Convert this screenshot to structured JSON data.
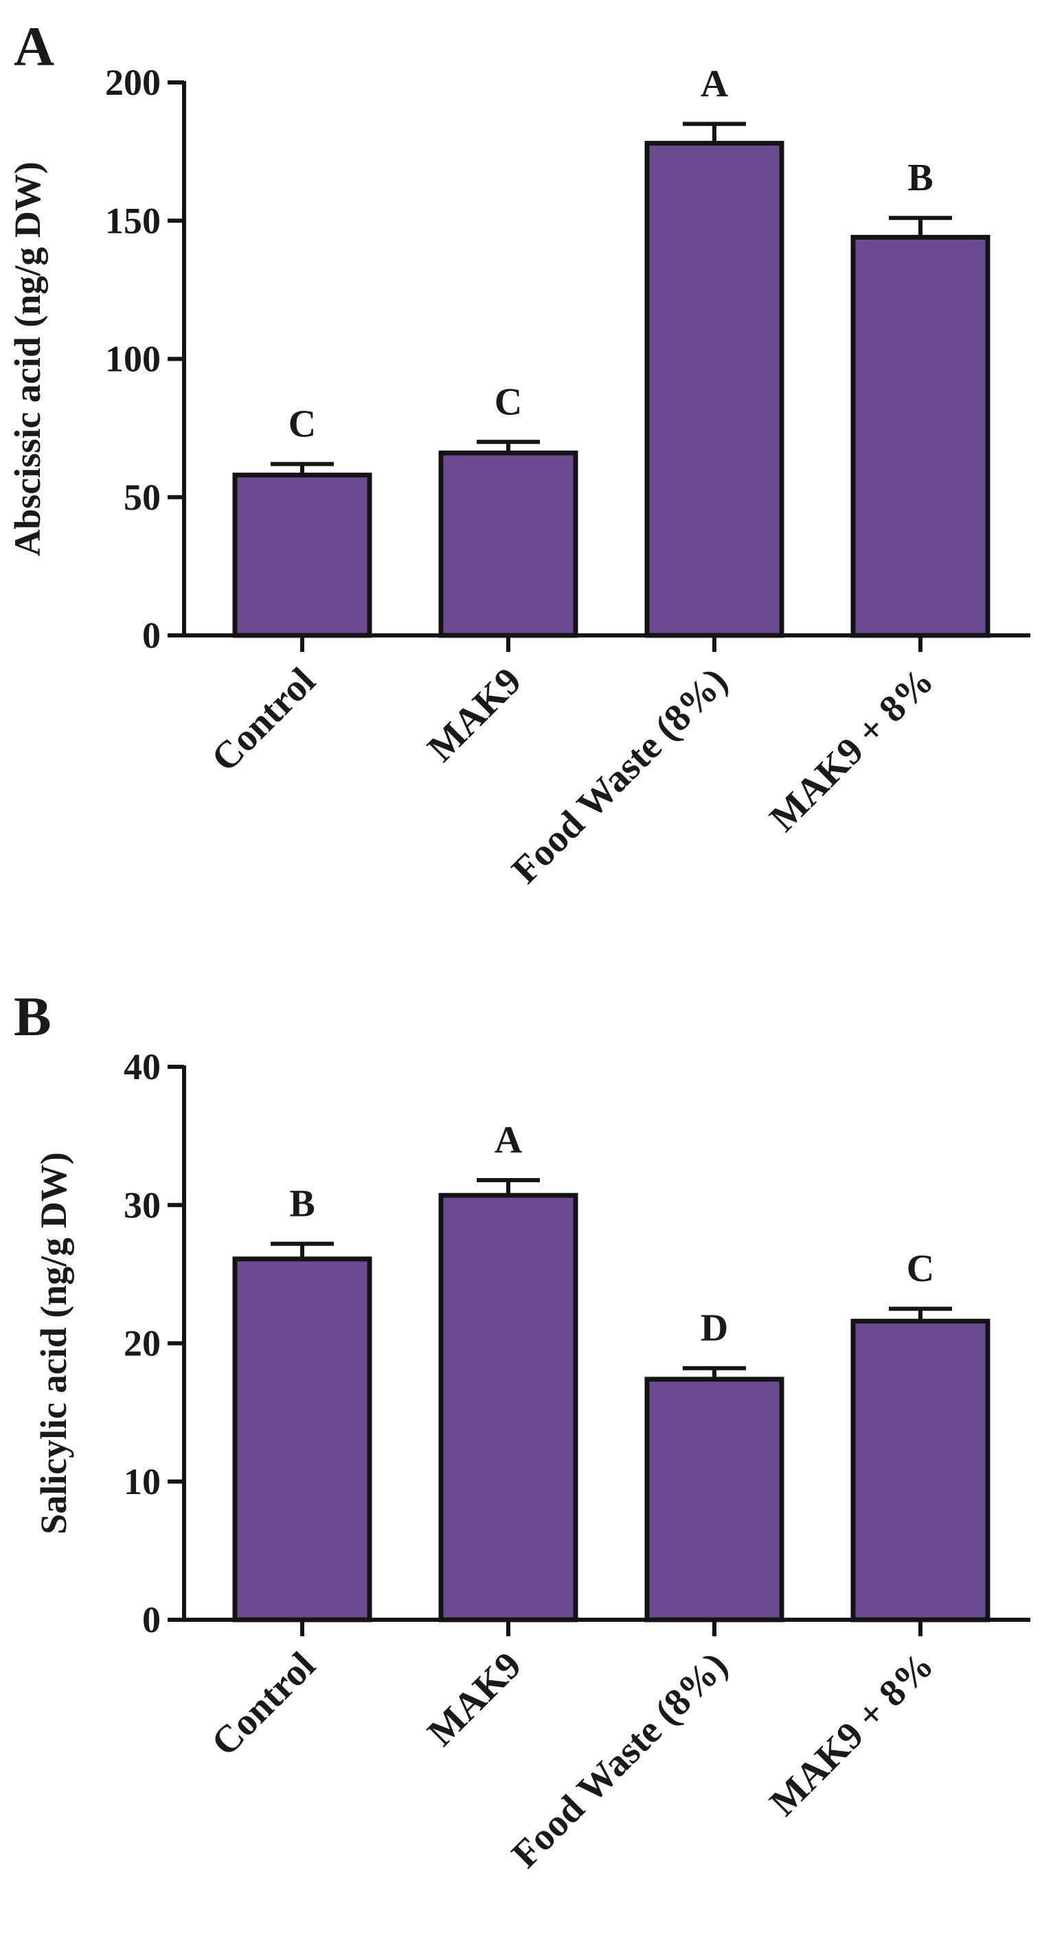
{
  "colors": {
    "bar": "#6b4c93",
    "stroke": "#141414",
    "text": "#1a1a1a"
  },
  "chart_data": [
    {
      "panel_label": "A",
      "type": "bar",
      "title": "",
      "xlabel": "",
      "ylabel": "Abscissic acid (ng/g DW)",
      "ylim": [
        0,
        200
      ],
      "yticks": [
        0,
        50,
        100,
        150,
        200
      ],
      "ytick_labels": [
        "0",
        "50",
        "100",
        "150",
        "200"
      ],
      "grid": false,
      "categories": [
        "Control",
        "MAK9",
        "Food Waste (8%)",
        "MAK9 + 8%"
      ],
      "values": [
        58,
        66,
        178,
        144
      ],
      "errors": [
        4,
        4,
        7,
        7
      ],
      "letters": [
        "C",
        "C",
        "A",
        "B"
      ]
    },
    {
      "panel_label": "B",
      "type": "bar",
      "title": "",
      "xlabel": "",
      "ylabel": "Salicylic acid (ng/g DW)",
      "ylim": [
        0,
        40
      ],
      "yticks": [
        0,
        10,
        20,
        30,
        40
      ],
      "ytick_labels": [
        "0",
        "10",
        "20",
        "30",
        "40"
      ],
      "grid": false,
      "categories": [
        "Control",
        "MAK9",
        "Food Waste (8%)",
        "MAK9 + 8%"
      ],
      "values": [
        26.1,
        30.7,
        17.4,
        21.6
      ],
      "errors": [
        1.1,
        1.1,
        0.8,
        0.9
      ],
      "letters": [
        "B",
        "A",
        "D",
        "C"
      ]
    }
  ]
}
